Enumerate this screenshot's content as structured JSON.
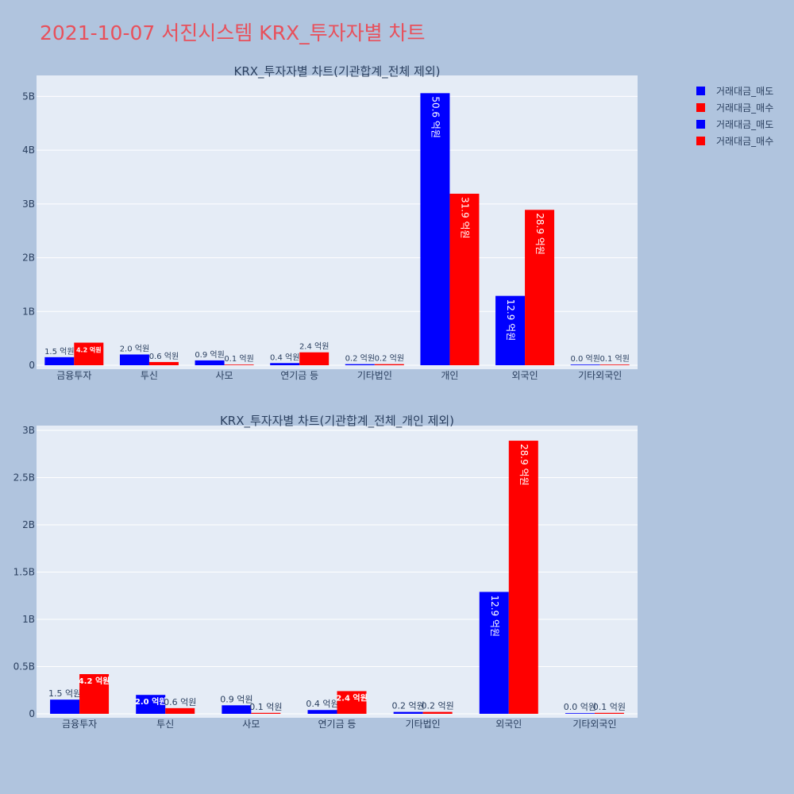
{
  "title": "2021-10-07 서진시스템 KRX_투자자별 차트",
  "legend": [
    {
      "name": "거래대금_매도",
      "color": "#0000ff"
    },
    {
      "name": "거래대금_매수",
      "color": "#ff0000"
    },
    {
      "name": "거래대금_매도",
      "color": "#0000ff"
    },
    {
      "name": "거래대금_매수",
      "color": "#ff0000"
    }
  ],
  "colors": {
    "sell": "#0000ff",
    "buy": "#ff0000",
    "plot_bg": "#e5ecf6",
    "page_bg": "#b0c4de",
    "title": "#e8505b"
  },
  "chart_data": [
    {
      "type": "bar",
      "title": "KRX_투자자별 차트(기관합계_전체 제외)",
      "categories": [
        "금융투자",
        "투신",
        "사모",
        "연기금 등",
        "기타법인",
        "개인",
        "외국인",
        "기타외국인"
      ],
      "series": [
        {
          "name": "거래대금_매도",
          "color": "#0000ff",
          "values": [
            150000000,
            200000000,
            90000000,
            40000000,
            20000000,
            5060000000,
            1290000000,
            0
          ],
          "labels": [
            "1.5 억원",
            "2.0 억원",
            "0.9 억원",
            "0.4 억원",
            "0.2 억원",
            "50.6 억원",
            "12.9 억원",
            "0.0 억원"
          ]
        },
        {
          "name": "거래대금_매수",
          "color": "#ff0000",
          "values": [
            420000000,
            60000000,
            10000000,
            240000000,
            20000000,
            3190000000,
            2890000000,
            10000000
          ],
          "labels": [
            "4.2 억원",
            "0.6 억원",
            "0.1 억원",
            "2.4 억원",
            "0.2 억원",
            "31.9 억원",
            "28.9 억원",
            "0.1 억원"
          ]
        }
      ],
      "yticks": [
        0,
        1000000000,
        2000000000,
        3000000000,
        4000000000,
        5000000000
      ],
      "ytick_labels": [
        "0",
        "1B",
        "2B",
        "3B",
        "4B",
        "5B"
      ],
      "ylim": [
        0,
        5390000000
      ],
      "grid": true
    },
    {
      "type": "bar",
      "title": "KRX_투자자별 차트(기관합계_전체_개인 제외)",
      "categories": [
        "금융투자",
        "투신",
        "사모",
        "연기금 등",
        "기타법인",
        "외국인",
        "기타외국인"
      ],
      "series": [
        {
          "name": "거래대금_매도",
          "color": "#0000ff",
          "values": [
            150000000,
            200000000,
            90000000,
            40000000,
            20000000,
            1290000000,
            0
          ],
          "labels": [
            "1.5 억원",
            "2.0 억원",
            "0.9 억원",
            "0.4 억원",
            "0.2 억원",
            "12.9 억원",
            "0.0 억원"
          ]
        },
        {
          "name": "거래대금_매수",
          "color": "#ff0000",
          "values": [
            420000000,
            60000000,
            10000000,
            240000000,
            20000000,
            2890000000,
            10000000
          ],
          "labels": [
            "4.2 억원",
            "0.6 억원",
            "0.1 억원",
            "2.4 억원",
            "0.2 억원",
            "28.9 억원",
            "0.1 억원"
          ]
        }
      ],
      "yticks": [
        0,
        500000000,
        1000000000,
        1500000000,
        2000000000,
        2500000000,
        3000000000
      ],
      "ytick_labels": [
        "0",
        "0.5B",
        "1B",
        "1.5B",
        "2B",
        "2.5B",
        "3B"
      ],
      "ylim": [
        0,
        3050000000
      ],
      "grid": true
    }
  ]
}
